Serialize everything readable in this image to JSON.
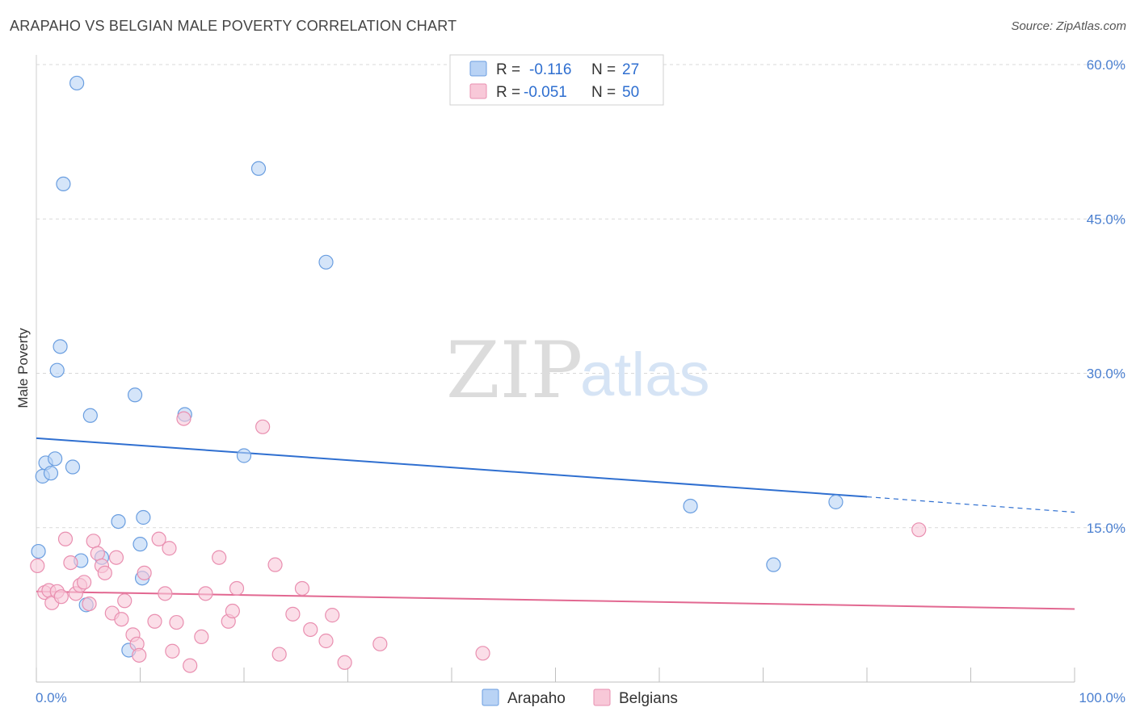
{
  "title": "ARAPAHO VS BELGIAN MALE POVERTY CORRELATION CHART",
  "source": "Source: ZipAtlas.com",
  "watermark": {
    "zip": "ZIP",
    "atlas": "atlas"
  },
  "colors": {
    "arapaho_fill": "#b9d3f5",
    "arapaho_stroke": "#6a9ee0",
    "arapaho_line": "#2f6fd0",
    "belgians_fill": "#f8c8d8",
    "belgians_stroke": "#e98fb0",
    "belgians_line": "#e26891",
    "tick": "#4a7fd0",
    "grid": "#d9d9d9"
  },
  "legend": {
    "r_label": "R =",
    "n_label": "N =",
    "rows": [
      {
        "r": "-0.116",
        "n": "27"
      },
      {
        "r": "-0.051",
        "n": "50"
      }
    ]
  },
  "chart_data": {
    "type": "scatter",
    "title": "ARAPAHO VS BELGIAN MALE POVERTY CORRELATION CHART",
    "xlabel": "",
    "ylabel": "Male Poverty",
    "xlim": [
      0,
      100
    ],
    "ylim": [
      0,
      60
    ],
    "x_tick_labels": [
      "0.0%",
      "100.0%"
    ],
    "y_ticks": [
      15,
      30,
      45,
      60
    ],
    "y_tick_labels": [
      "15.0%",
      "30.0%",
      "45.0%",
      "60.0%"
    ],
    "grid": true,
    "legend_position": "top-center",
    "series": [
      {
        "name": "Arapaho",
        "r": -0.116,
        "n": 27,
        "trend": {
          "x0": 0,
          "y0": 23.7,
          "x1": 80,
          "y1": 18.0,
          "dash_to_x": 100,
          "dash_to_y": 16.5
        },
        "points": [
          [
            3.9,
            58.2
          ],
          [
            2.6,
            48.4
          ],
          [
            21.4,
            49.9
          ],
          [
            27.9,
            40.8
          ],
          [
            2.3,
            32.6
          ],
          [
            2.0,
            30.3
          ],
          [
            9.5,
            27.9
          ],
          [
            5.2,
            25.9
          ],
          [
            14.3,
            26.0
          ],
          [
            20.0,
            22.0
          ],
          [
            0.9,
            21.3
          ],
          [
            1.8,
            21.7
          ],
          [
            3.5,
            20.9
          ],
          [
            0.6,
            20.0
          ],
          [
            1.4,
            20.3
          ],
          [
            7.9,
            15.6
          ],
          [
            10.3,
            16.0
          ],
          [
            10.0,
            13.4
          ],
          [
            0.2,
            12.7
          ],
          [
            6.3,
            12.1
          ],
          [
            4.3,
            11.8
          ],
          [
            10.2,
            10.1
          ],
          [
            4.8,
            7.5
          ],
          [
            8.9,
            3.1
          ],
          [
            63.0,
            17.1
          ],
          [
            77.0,
            17.5
          ],
          [
            71.0,
            11.4
          ]
        ]
      },
      {
        "name": "Belgians",
        "r": -0.051,
        "n": 50,
        "trend": {
          "x0": 0,
          "y0": 8.8,
          "x1": 100,
          "y1": 7.1
        },
        "points": [
          [
            0.1,
            11.3
          ],
          [
            0.8,
            8.7
          ],
          [
            1.2,
            8.9
          ],
          [
            1.5,
            7.7
          ],
          [
            2.0,
            8.8
          ],
          [
            2.4,
            8.3
          ],
          [
            2.8,
            13.9
          ],
          [
            3.3,
            11.6
          ],
          [
            3.8,
            8.6
          ],
          [
            4.2,
            9.4
          ],
          [
            4.6,
            9.7
          ],
          [
            5.1,
            7.6
          ],
          [
            5.5,
            13.7
          ],
          [
            5.9,
            12.5
          ],
          [
            6.3,
            11.3
          ],
          [
            6.6,
            10.6
          ],
          [
            7.3,
            6.7
          ],
          [
            7.7,
            12.1
          ],
          [
            8.2,
            6.1
          ],
          [
            8.5,
            7.9
          ],
          [
            9.3,
            4.6
          ],
          [
            9.7,
            3.7
          ],
          [
            9.9,
            2.6
          ],
          [
            10.4,
            10.6
          ],
          [
            11.4,
            5.9
          ],
          [
            11.8,
            13.9
          ],
          [
            12.4,
            8.6
          ],
          [
            12.8,
            13.0
          ],
          [
            13.1,
            3.0
          ],
          [
            13.5,
            5.8
          ],
          [
            14.2,
            25.6
          ],
          [
            14.8,
            1.6
          ],
          [
            15.9,
            4.4
          ],
          [
            16.3,
            8.6
          ],
          [
            17.6,
            12.1
          ],
          [
            18.5,
            5.9
          ],
          [
            18.9,
            6.9
          ],
          [
            19.3,
            9.1
          ],
          [
            21.8,
            24.8
          ],
          [
            23.0,
            11.4
          ],
          [
            23.4,
            2.7
          ],
          [
            24.7,
            6.6
          ],
          [
            25.6,
            9.1
          ],
          [
            26.4,
            5.1
          ],
          [
            27.9,
            4.0
          ],
          [
            29.7,
            1.9
          ],
          [
            33.1,
            3.7
          ],
          [
            43.0,
            2.8
          ],
          [
            85.0,
            14.8
          ],
          [
            28.5,
            6.5
          ]
        ]
      }
    ]
  }
}
